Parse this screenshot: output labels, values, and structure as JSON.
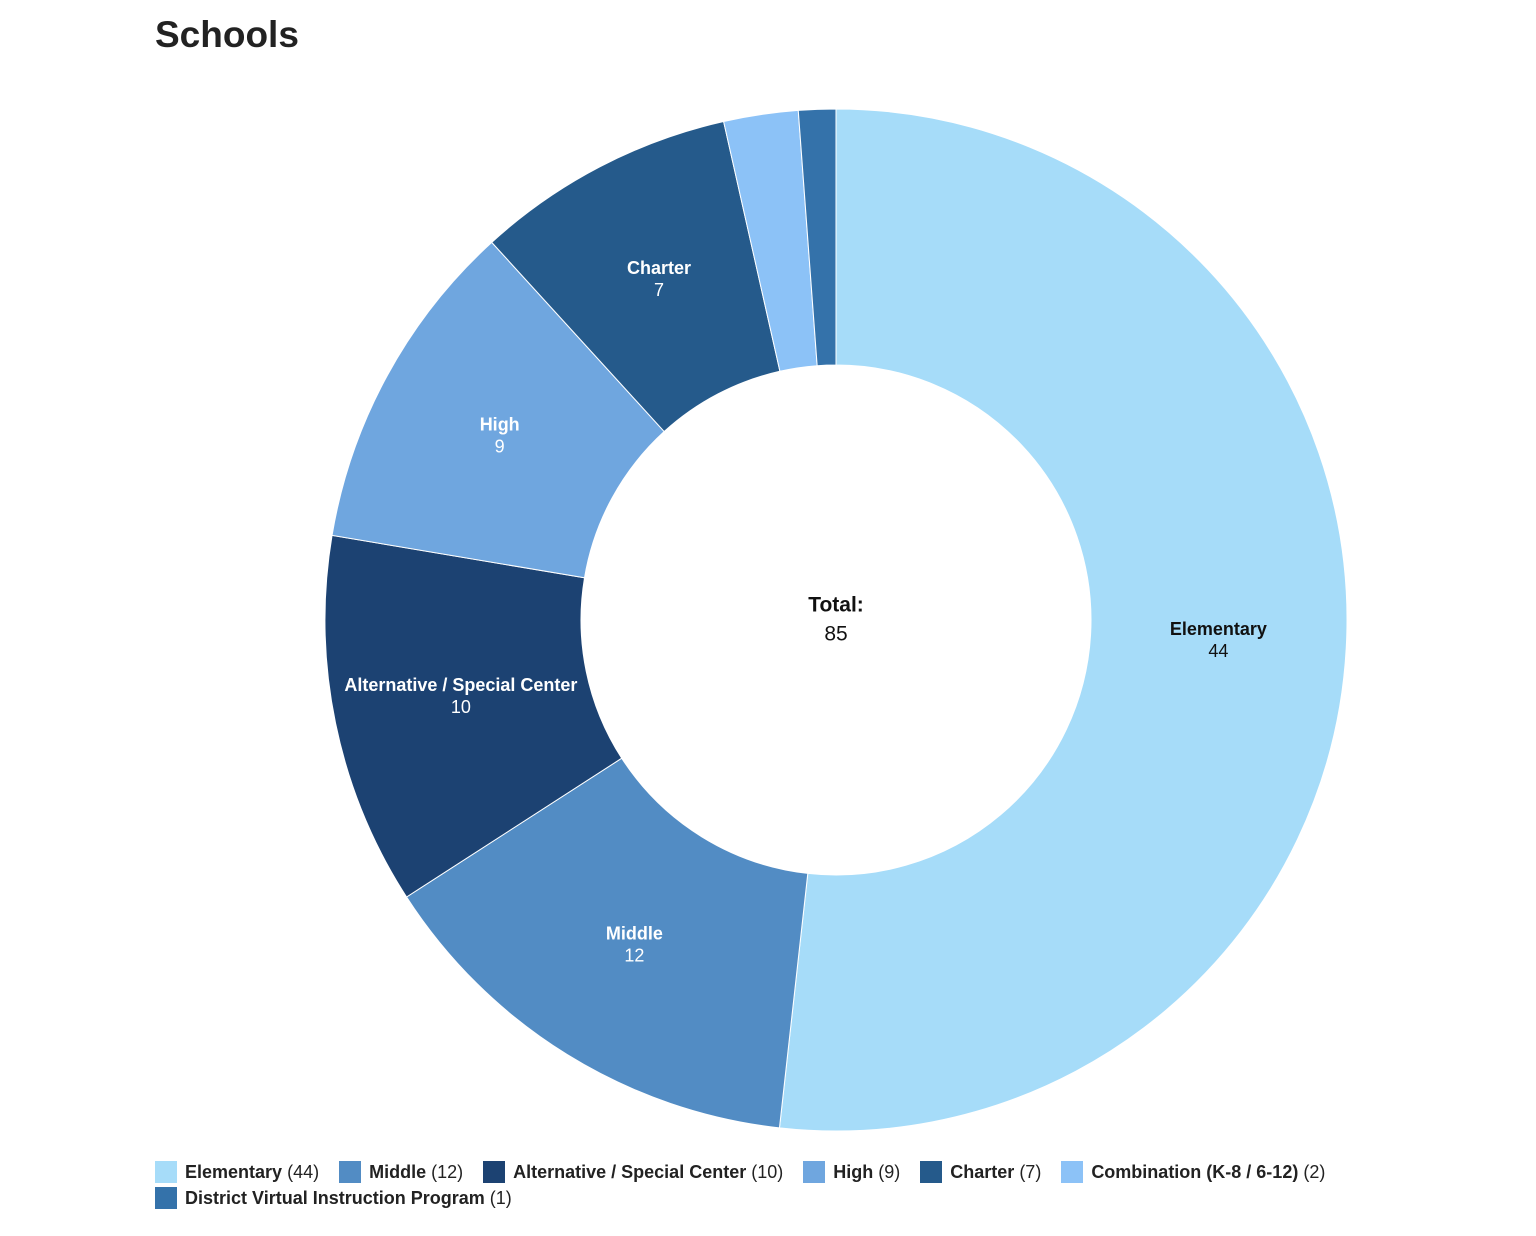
{
  "chart_data": {
    "type": "donut",
    "title": "Schools",
    "categories": [
      "Elementary",
      "Middle",
      "Alternative / Special Center",
      "High",
      "Charter",
      "Combination (K-8 / 6-12)",
      "District Virtual Instruction Program"
    ],
    "values": [
      44,
      12,
      10,
      9,
      7,
      2,
      1
    ],
    "legend_value_labels": [
      "(44)",
      "(12)",
      "(10)",
      "(9)",
      "(7)",
      "(2)",
      "(1)"
    ],
    "colors": [
      "#a6dcf9",
      "#528cc4",
      "#1c4272",
      "#6fa6df",
      "#255a8b",
      "#8cc2f7",
      "#3472aa"
    ],
    "center_label": "Total:",
    "total": 85,
    "legend": "bottom"
  }
}
